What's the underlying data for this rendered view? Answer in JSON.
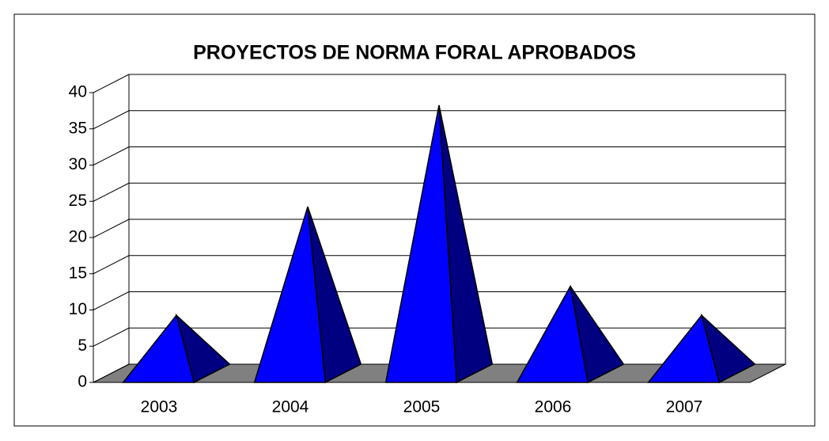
{
  "chart_data": {
    "type": "pyramid3d",
    "title": "PROYECTOS DE NORMA FORAL APROBADOS",
    "categories": [
      "2003",
      "2004",
      "2005",
      "2006",
      "2007"
    ],
    "values": [
      8,
      23,
      37,
      12,
      8
    ],
    "color": "#0000ff",
    "side_color": "#000080",
    "floor_color": "#808080",
    "ylim": [
      0,
      40
    ],
    "yticks": [
      0,
      5,
      10,
      15,
      20,
      25,
      30,
      35,
      40
    ],
    "grid": true
  }
}
